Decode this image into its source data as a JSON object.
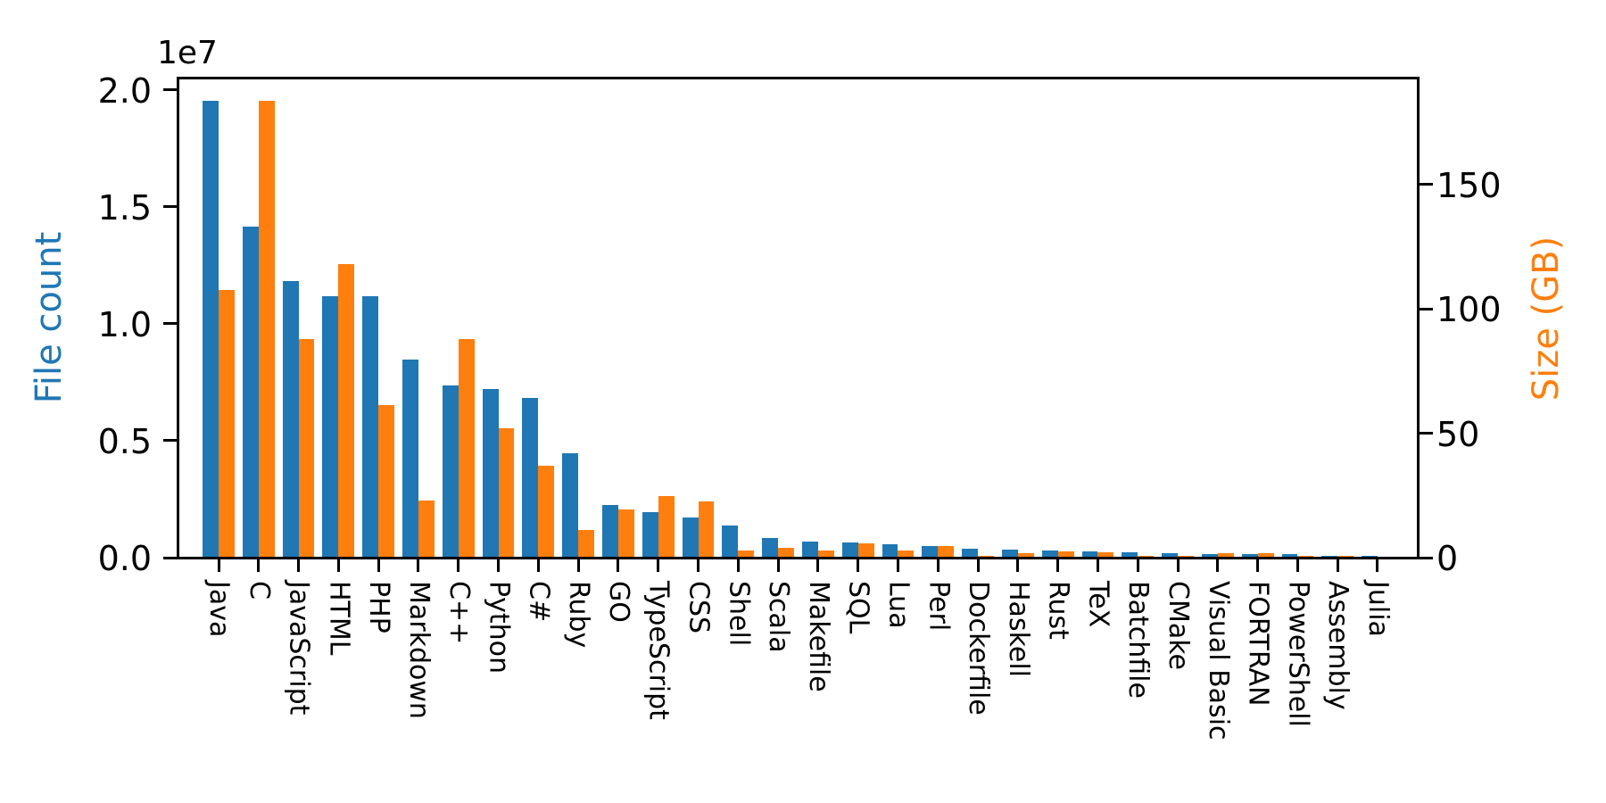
{
  "chart_data": {
    "type": "bar",
    "title": "",
    "grid": false,
    "legend": "none",
    "background_color": "#ffffff",
    "axis_line_color": "#000000",
    "categories": [
      "Java",
      "C",
      "JavaScript",
      "HTML",
      "PHP",
      "Markdown",
      "C++",
      "Python",
      "C#",
      "Ruby",
      "GO",
      "TypeScript",
      "CSS",
      "Shell",
      "Scala",
      "Makefile",
      "SQL",
      "Lua",
      "Perl",
      "Dockerfile",
      "Haskell",
      "Rust",
      "TeX",
      "Batchfile",
      "CMake",
      "Visual Basic",
      "FORTRAN",
      "PowerShell",
      "Assembly",
      "Julia"
    ],
    "series": [
      {
        "name": "File count",
        "axis": "left",
        "color": "#1f77b4",
        "values": [
          19548190,
          14143113,
          11839883,
          11178557,
          11177610,
          8464626,
          7380520,
          7226626,
          6811652,
          4473331,
          2265436,
          1940406,
          1734406,
          1385648,
          835755,
          679430,
          656671,
          578554,
          497949,
          366505,
          340240,
          322431,
          251015,
          236945,
          175282,
          155652,
          142038,
          136846,
          82905,
          58317
        ]
      },
      {
        "name": "Size (GB)",
        "axis": "right",
        "color": "#ff7f0e",
        "values": [
          107.7,
          183.83,
          87.82,
          118.12,
          61.41,
          23.09,
          87.73,
          52.03,
          36.83,
          10.95,
          19.28,
          24.59,
          22.67,
          3.01,
          3.87,
          2.92,
          5.67,
          2.81,
          4.7,
          0.71,
          1.85,
          2.68,
          2.15,
          0.7,
          0.54,
          1.91,
          1.62,
          0.69,
          0.78,
          0.29
        ]
      }
    ],
    "left_axis": {
      "label": "File count",
      "label_color": "#1f77b4",
      "offset_text": "1e7",
      "tick_values": [
        0,
        5000000,
        10000000,
        15000000,
        20000000
      ],
      "tick_labels": [
        "0.0",
        "0.5",
        "1.0",
        "1.5",
        "2.0"
      ],
      "min": 0,
      "max": 20526000
    },
    "right_axis": {
      "label": "Size (GB)",
      "label_color": "#ff7f0e",
      "tick_values": [
        0,
        50,
        100,
        150
      ],
      "tick_labels": [
        "0",
        "50",
        "100",
        "150"
      ],
      "min": 0,
      "max": 193.02
    }
  }
}
